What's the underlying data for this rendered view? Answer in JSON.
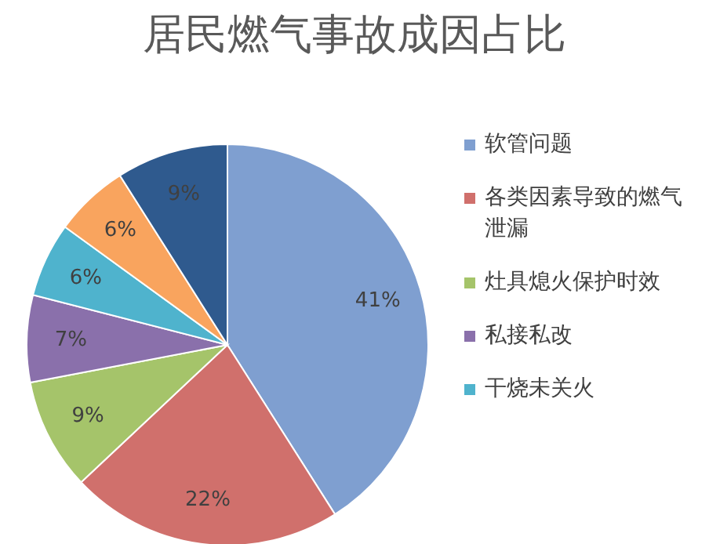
{
  "chart_data": {
    "type": "pie",
    "title": "居民燃气事故成因占比",
    "categories": [
      "软管问题",
      "各类因素导致的燃气泄漏",
      "灶具熄火保护时效",
      "私接私改",
      "干烧未关火",
      null,
      null
    ],
    "values": [
      41,
      22,
      9,
      7,
      6,
      6,
      9
    ],
    "colors": [
      "#7f9fd0",
      "#d0706c",
      "#a5c46a",
      "#8a70ab",
      "#4fb3cd",
      "#f9a45e",
      "#2f5a8e"
    ],
    "value_labels": [
      "41%",
      "22%",
      "9%",
      "7%",
      "6%",
      "6%",
      "9%"
    ],
    "legend": "right"
  }
}
